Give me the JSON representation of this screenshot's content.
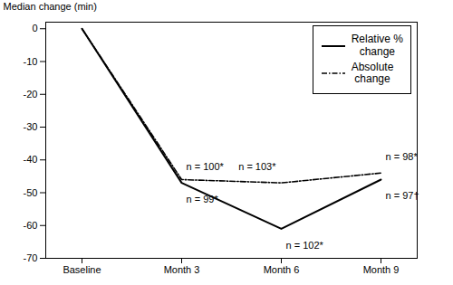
{
  "chart_data": {
    "type": "line",
    "categories": [
      "Baseline",
      "Month 3",
      "Month 6",
      "Month 9"
    ],
    "series": [
      {
        "name": "Relative %\nchange",
        "color": "#000000",
        "line_style": "solid",
        "values": [
          0,
          -47,
          -61,
          -46
        ]
      },
      {
        "name": "Absolute\nchange",
        "color": "#000000",
        "line_style": "dashdot",
        "values": [
          0,
          -46,
          -47,
          -44
        ]
      }
    ],
    "ylabel": "Median change (min)",
    "ylim": [
      -70,
      2
    ],
    "yticks": [
      0,
      -10,
      -20,
      -30,
      -40,
      -50,
      -60,
      -70
    ],
    "grid": false,
    "legend": "upper right",
    "annotations": [
      {
        "text": "n = 100*",
        "x": "Month 3",
        "y": -47,
        "position": "above",
        "side": "right"
      },
      {
        "text": "n = 99*",
        "x": "Month 3",
        "y": -47,
        "position": "below",
        "side": "right"
      },
      {
        "text": "n = 103*",
        "x": "Month 6",
        "y": -47,
        "position": "above",
        "side": "left"
      },
      {
        "text": "n = 102*",
        "x": "Month 6",
        "y": -61,
        "position": "below",
        "side": "right"
      },
      {
        "text": "n = 98*",
        "x": "Month 9",
        "y": -44,
        "position": "above",
        "side": "right"
      },
      {
        "text": "n = 97†",
        "x": "Month 9",
        "y": -46,
        "position": "below",
        "side": "right"
      }
    ]
  }
}
